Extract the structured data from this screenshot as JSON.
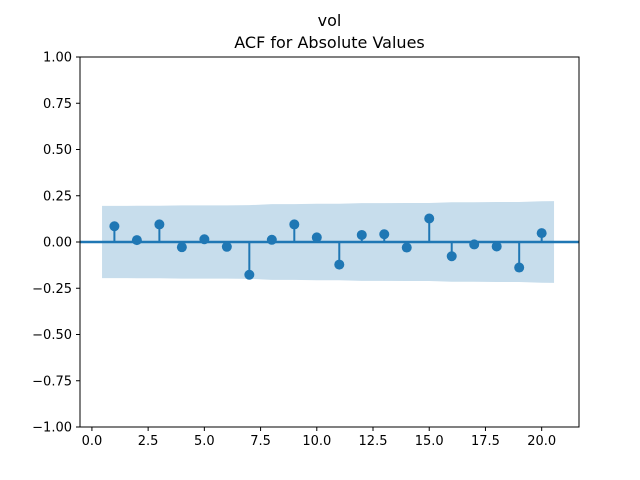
{
  "figure": {
    "background": "#ffffff"
  },
  "chart_data": {
    "type": "stem",
    "title": "vol",
    "subtitle": "ACF for Absolute Values",
    "xlabel": "",
    "ylabel": "",
    "x": [
      1,
      2,
      3,
      4,
      5,
      6,
      7,
      8,
      9,
      10,
      11,
      12,
      13,
      14,
      15,
      16,
      17,
      18,
      19,
      20
    ],
    "values": [
      0.085,
      0.01,
      0.095,
      -0.028,
      0.015,
      -0.026,
      -0.177,
      0.012,
      0.095,
      0.025,
      -0.122,
      0.038,
      0.042,
      -0.03,
      0.127,
      -0.077,
      -0.013,
      -0.024,
      -0.138,
      0.048
    ],
    "confidence_band": {
      "x": [
        0.45,
        1,
        2,
        3,
        4,
        5,
        6,
        7,
        8,
        9,
        10,
        11,
        12,
        13,
        14,
        15,
        16,
        17,
        18,
        19,
        20,
        20.55
      ],
      "upper": [
        0.195,
        0.195,
        0.196,
        0.196,
        0.198,
        0.198,
        0.198,
        0.199,
        0.205,
        0.205,
        0.207,
        0.207,
        0.21,
        0.21,
        0.211,
        0.211,
        0.215,
        0.215,
        0.216,
        0.216,
        0.22,
        0.221
      ],
      "lower": [
        -0.195,
        -0.195,
        -0.196,
        -0.196,
        -0.198,
        -0.198,
        -0.198,
        -0.199,
        -0.205,
        -0.205,
        -0.207,
        -0.207,
        -0.21,
        -0.21,
        -0.211,
        -0.211,
        -0.215,
        -0.215,
        -0.216,
        -0.216,
        -0.22,
        -0.221
      ]
    },
    "xlim": [
      -0.53,
      21.66
    ],
    "ylim": [
      -1.0,
      1.0
    ],
    "xticks": {
      "values": [
        0,
        2.5,
        5,
        7.5,
        10,
        12.5,
        15,
        17.5,
        20
      ],
      "labels": [
        "0.0",
        "2.5",
        "5.0",
        "7.5",
        "10.0",
        "12.5",
        "15.0",
        "17.5",
        "20.0"
      ]
    },
    "yticks": {
      "values": [
        1.0,
        0.75,
        0.5,
        0.25,
        0.0,
        -0.25,
        -0.5,
        -0.75,
        -1.0
      ],
      "labels": [
        "1.00",
        "0.75",
        "0.50",
        "0.25",
        "0.00",
        "−0.25",
        "−0.50",
        "−0.75",
        "−1.00"
      ]
    },
    "zero_line": 0.0,
    "grid": false,
    "legend": null,
    "colors": {
      "stem": "#1f77b4",
      "marker": "#1f77b4",
      "band": "#c7ddec",
      "axis": "#000000",
      "text": "#000000"
    }
  }
}
